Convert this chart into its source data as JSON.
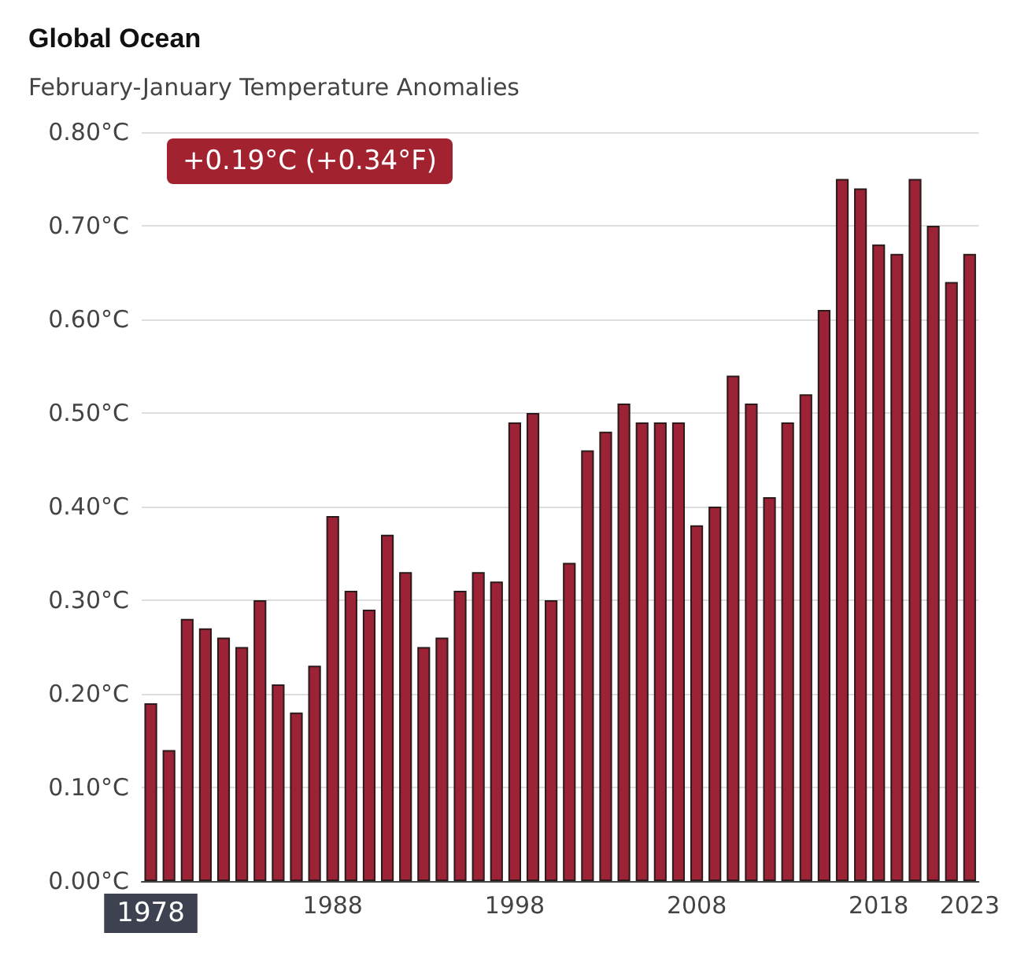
{
  "chart_data": {
    "type": "bar",
    "title": "Global Ocean",
    "subtitle": "February-January Temperature Anomalies",
    "categories": [
      "1978",
      null,
      null,
      null,
      null,
      null,
      null,
      null,
      null,
      null,
      "1988",
      null,
      null,
      null,
      null,
      null,
      null,
      null,
      null,
      null,
      "1998",
      null,
      null,
      null,
      null,
      null,
      null,
      null,
      null,
      null,
      "2008",
      null,
      null,
      null,
      null,
      null,
      null,
      null,
      null,
      null,
      "2018",
      null,
      null,
      null,
      null,
      "2023"
    ],
    "values": [
      0.19,
      0.14,
      0.28,
      0.27,
      0.26,
      0.25,
      0.3,
      0.21,
      0.18,
      0.23,
      0.39,
      0.31,
      0.29,
      0.37,
      0.33,
      0.25,
      0.26,
      0.31,
      0.33,
      0.32,
      0.49,
      0.5,
      0.3,
      0.34,
      0.46,
      0.48,
      0.51,
      0.49,
      0.49,
      0.49,
      0.38,
      0.4,
      0.54,
      0.51,
      0.41,
      0.49,
      0.52,
      0.61,
      0.75,
      0.74,
      0.68,
      0.67,
      0.75,
      0.7,
      0.64,
      0.67
    ],
    "color": "#9b2335",
    "ylim": [
      0,
      0.8
    ],
    "yticks": [
      {
        "value": 0,
        "label": "0.00°C"
      },
      {
        "value": 0.1,
        "label": "0.10°C"
      },
      {
        "value": 0.2,
        "label": "0.20°C"
      },
      {
        "value": 0.3,
        "label": "0.30°C"
      },
      {
        "value": 0.4,
        "label": "0.40°C"
      },
      {
        "value": 0.5,
        "label": "0.50°C"
      },
      {
        "value": 0.6,
        "label": "0.60°C"
      },
      {
        "value": 0.7,
        "label": "0.70°C"
      },
      {
        "value": 0.8,
        "label": "0.80°C"
      }
    ],
    "annotations": [
      "+0.19°C (+0.34°F)"
    ],
    "grid": "y"
  }
}
